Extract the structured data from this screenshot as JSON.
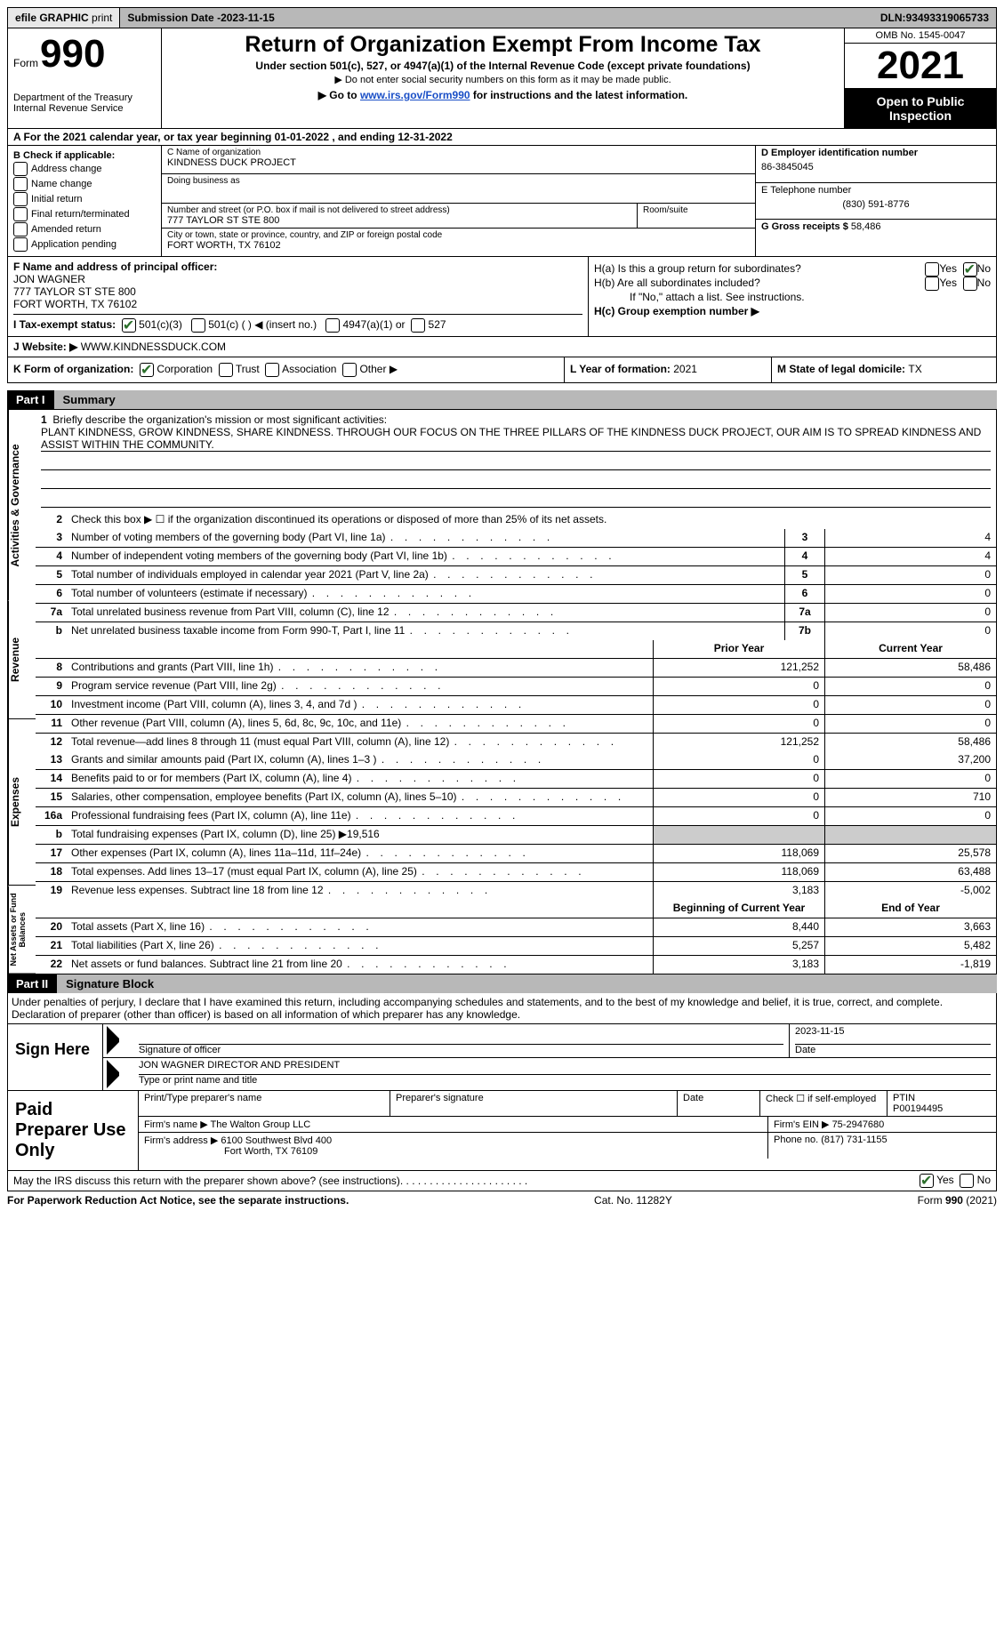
{
  "topbar": {
    "efile": "efile GRAPHIC",
    "print": "print",
    "subdate_label": "Submission Date - ",
    "subdate": "2023-11-15",
    "dln_label": "DLN: ",
    "dln": "93493319065733"
  },
  "header": {
    "form_label": "Form",
    "form_number": "990",
    "dept": "Department of the Treasury",
    "irs": "Internal Revenue Service",
    "title": "Return of Organization Exempt From Income Tax",
    "subtitle": "Under section 501(c), 527, or 4947(a)(1) of the Internal Revenue Code (except private foundations)",
    "note1": "▶ Do not enter social security numbers on this form as it may be made public.",
    "note2_pre": "▶ Go to ",
    "note2_link": "www.irs.gov/Form990",
    "note2_post": " for instructions and the latest information.",
    "omb": "OMB No. 1545-0047",
    "year": "2021",
    "open": "Open to Public Inspection"
  },
  "rowA": {
    "text": "A For the 2021 calendar year, or tax year beginning 01-01-2022   , and ending 12-31-2022"
  },
  "colB": {
    "label": "B Check if applicable:",
    "items": [
      "Address change",
      "Name change",
      "Initial return",
      "Final return/terminated",
      "Amended return",
      "Application pending"
    ]
  },
  "boxC": {
    "name_lbl": "C Name of organization",
    "name": "KINDNESS DUCK PROJECT",
    "dba_lbl": "Doing business as",
    "street_lbl": "Number and street (or P.O. box if mail is not delivered to street address)",
    "room_lbl": "Room/suite",
    "street": "777 TAYLOR ST STE 800",
    "city_lbl": "City or town, state or province, country, and ZIP or foreign postal code",
    "city": "FORT WORTH, TX  76102"
  },
  "boxD": {
    "ein_lbl": "D Employer identification number",
    "ein": "86-3845045",
    "tel_lbl": "E Telephone number",
    "tel": "(830) 591-8776",
    "gross_lbl": "G Gross receipts $",
    "gross": "58,486"
  },
  "rowF": {
    "label": "F  Name and address of principal officer:",
    "name": "JON WAGNER",
    "addr1": "777 TAYLOR ST STE 800",
    "addr2": "FORT WORTH, TX  76102"
  },
  "rowH": {
    "ha": "H(a)  Is this a group return for subordinates?",
    "hb": "H(b)  Are all subordinates included?",
    "hb_note": "If \"No,\" attach a list. See instructions.",
    "hc": "H(c)  Group exemption number ▶",
    "yes": "Yes",
    "no": "No"
  },
  "rowI": {
    "label": "I   Tax-exempt status:",
    "o1": "501(c)(3)",
    "o2": "501(c) (   ) ◀ (insert no.)",
    "o3": "4947(a)(1) or",
    "o4": "527"
  },
  "rowJ": {
    "label": "J   Website: ▶",
    "value": "  WWW.KINDNESSDUCK.COM"
  },
  "rowK": {
    "label": "K Form of organization:",
    "corp": "Corporation",
    "trust": "Trust",
    "assoc": "Association",
    "other": "Other ▶"
  },
  "rowL": {
    "label": "L Year of formation: ",
    "val": "2021"
  },
  "rowM": {
    "label": "M State of legal domicile: ",
    "val": "TX"
  },
  "part1": {
    "num": "Part I",
    "title": "Summary",
    "side_ag": "Activities & Governance",
    "side_rev": "Revenue",
    "side_exp": "Expenses",
    "side_net": "Net Assets or Fund Balances",
    "q1_lbl": "1",
    "q1": "Briefly describe the organization's mission or most significant activities:",
    "q1_text": "PLANT KINDNESS, GROW KINDNESS, SHARE KINDNESS. THROUGH OUR FOCUS ON THE THREE PILLARS OF THE KINDNESS DUCK PROJECT, OUR AIM IS TO SPREAD KINDNESS AND ASSIST WITHIN THE COMMUNITY.",
    "q2_lbl": "2",
    "q2": "Check this box ▶ ☐  if the organization discontinued its operations or disposed of more than 25% of its net assets.",
    "rows_ag": [
      {
        "n": "3",
        "d": "Number of voting members of the governing body (Part VI, line 1a)",
        "b": "3",
        "v": "4"
      },
      {
        "n": "4",
        "d": "Number of independent voting members of the governing body (Part VI, line 1b)",
        "b": "4",
        "v": "4"
      },
      {
        "n": "5",
        "d": "Total number of individuals employed in calendar year 2021 (Part V, line 2a)",
        "b": "5",
        "v": "0"
      },
      {
        "n": "6",
        "d": "Total number of volunteers (estimate if necessary)",
        "b": "6",
        "v": "0"
      },
      {
        "n": "7a",
        "d": "Total unrelated business revenue from Part VIII, column (C), line 12",
        "b": "7a",
        "v": "0"
      },
      {
        "n": "b",
        "d": "Net unrelated business taxable income from Form 990-T, Part I, line 11",
        "b": "7b",
        "v": "0"
      }
    ],
    "hdr_prior": "Prior Year",
    "hdr_curr": "Current Year",
    "rows_rev": [
      {
        "n": "8",
        "d": "Contributions and grants (Part VIII, line 1h)",
        "p": "121,252",
        "c": "58,486"
      },
      {
        "n": "9",
        "d": "Program service revenue (Part VIII, line 2g)",
        "p": "0",
        "c": "0"
      },
      {
        "n": "10",
        "d": "Investment income (Part VIII, column (A), lines 3, 4, and 7d )",
        "p": "0",
        "c": "0"
      },
      {
        "n": "11",
        "d": "Other revenue (Part VIII, column (A), lines 5, 6d, 8c, 9c, 10c, and 11e)",
        "p": "0",
        "c": "0"
      },
      {
        "n": "12",
        "d": "Total revenue—add lines 8 through 11 (must equal Part VIII, column (A), line 12)",
        "p": "121,252",
        "c": "58,486"
      }
    ],
    "rows_exp": [
      {
        "n": "13",
        "d": "Grants and similar amounts paid (Part IX, column (A), lines 1–3 )",
        "p": "0",
        "c": "37,200"
      },
      {
        "n": "14",
        "d": "Benefits paid to or for members (Part IX, column (A), line 4)",
        "p": "0",
        "c": "0"
      },
      {
        "n": "15",
        "d": "Salaries, other compensation, employee benefits (Part IX, column (A), lines 5–10)",
        "p": "0",
        "c": "710"
      },
      {
        "n": "16a",
        "d": "Professional fundraising fees (Part IX, column (A), line 11e)",
        "p": "0",
        "c": "0"
      },
      {
        "n": "b",
        "d": "Total fundraising expenses (Part IX, column (D), line 25) ▶19,516",
        "p": "",
        "c": "",
        "shaded": true
      },
      {
        "n": "17",
        "d": "Other expenses (Part IX, column (A), lines 11a–11d, 11f–24e)",
        "p": "118,069",
        "c": "25,578"
      },
      {
        "n": "18",
        "d": "Total expenses. Add lines 13–17 (must equal Part IX, column (A), line 25)",
        "p": "118,069",
        "c": "63,488"
      },
      {
        "n": "19",
        "d": "Revenue less expenses. Subtract line 18 from line 12",
        "p": "3,183",
        "c": "-5,002"
      }
    ],
    "hdr_beg": "Beginning of Current Year",
    "hdr_end": "End of Year",
    "rows_net": [
      {
        "n": "20",
        "d": "Total assets (Part X, line 16)",
        "p": "8,440",
        "c": "3,663"
      },
      {
        "n": "21",
        "d": "Total liabilities (Part X, line 26)",
        "p": "5,257",
        "c": "5,482"
      },
      {
        "n": "22",
        "d": "Net assets or fund balances. Subtract line 21 from line 20",
        "p": "3,183",
        "c": "-1,819"
      }
    ]
  },
  "part2": {
    "num": "Part II",
    "title": "Signature Block",
    "penalty": "Under penalties of perjury, I declare that I have examined this return, including accompanying schedules and statements, and to the best of my knowledge and belief, it is true, correct, and complete. Declaration of preparer (other than officer) is based on all information of which preparer has any knowledge.",
    "sign_here": "Sign Here",
    "sig_officer": "Signature of officer",
    "sig_date_lbl": "Date",
    "sig_date": "2023-11-15",
    "officer_name": "JON WAGNER  DIRECTOR AND PRESIDENT",
    "type_name": "Type or print name and title",
    "paid": "Paid Preparer Use Only",
    "prep_name_lbl": "Print/Type preparer's name",
    "prep_sig_lbl": "Preparer's signature",
    "check_self": "Check ☐ if self-employed",
    "ptin_lbl": "PTIN",
    "ptin": "P00194495",
    "firm_name_lbl": "Firm's name   ▶ ",
    "firm_name": "The Walton Group LLC",
    "firm_ein_lbl": "Firm's EIN ▶ ",
    "firm_ein": "75-2947680",
    "firm_addr_lbl": "Firm's address ▶ ",
    "firm_addr1": "6100 Southwest Blvd 400",
    "firm_addr2": "Fort Worth, TX  76109",
    "phone_lbl": "Phone no. ",
    "phone": "(817) 731-1155",
    "discuss": "May the IRS discuss this return with the preparer shown above? (see instructions)"
  },
  "footer": {
    "paperwork": "For Paperwork Reduction Act Notice, see the separate instructions.",
    "cat": "Cat. No. 11282Y",
    "form": "Form 990 (2021)"
  }
}
